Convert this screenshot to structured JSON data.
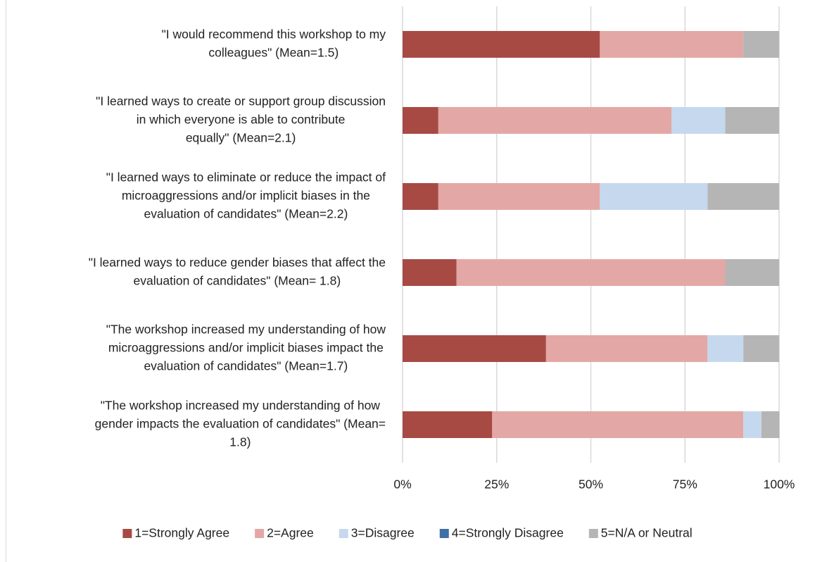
{
  "chart_data": {
    "type": "stacked-bar-horizontal",
    "categories": [
      [
        "\"I would recommend this workshop to my",
        "colleagues\" (Mean=1.5)"
      ],
      [
        "\"I learned ways to create or support group discussion",
        "in which everyone is able to contribute",
        "equally\" (Mean=2.1)"
      ],
      [
        "\"I learned ways to eliminate or reduce the impact of",
        "microaggressions and/or implicit biases in the",
        "evaluation of candidates\" (Mean=2.2)"
      ],
      [
        "\"I learned ways to reduce gender biases that affect the",
        "evaluation of candidates\" (Mean= 1.8)"
      ],
      [
        "\"The workshop increased my understanding of how",
        "microaggressions and/or implicit biases impact the",
        "evaluation of candidates\" (Mean=1.7)"
      ],
      [
        "\"The workshop increased my understanding of how",
        "gender impacts the evaluation of candidates\" (Mean=",
        "1.8)"
      ]
    ],
    "series": [
      {
        "name": "1=Strongly Agree",
        "color": "#a84a44",
        "values": [
          52.4,
          9.5,
          9.5,
          14.3,
          38.1,
          23.8
        ]
      },
      {
        "name": "2=Agree",
        "color": "#e3a8a5",
        "values": [
          38.1,
          61.9,
          42.9,
          71.4,
          42.9,
          66.7
        ]
      },
      {
        "name": "3=Disagree",
        "color": "#c5d8ee",
        "values": [
          0,
          14.3,
          28.6,
          0,
          9.5,
          4.8
        ]
      },
      {
        "name": "4=Strongly Disagree",
        "color": "#3e6fa5",
        "values": [
          0,
          0,
          0,
          0,
          0,
          0
        ]
      },
      {
        "name": "5=N/A or Neutral",
        "color": "#b5b5b5",
        "values": [
          9.5,
          14.3,
          19.0,
          14.3,
          9.5,
          4.8
        ]
      }
    ],
    "xlim": [
      0,
      100
    ],
    "xticks": [
      {
        "value": 0,
        "label": "0%"
      },
      {
        "value": 25,
        "label": "25%"
      },
      {
        "value": 50,
        "label": "50%"
      },
      {
        "value": 75,
        "label": "75%"
      },
      {
        "value": 100,
        "label": "100%"
      }
    ],
    "grid": true,
    "legend": "bottom"
  }
}
